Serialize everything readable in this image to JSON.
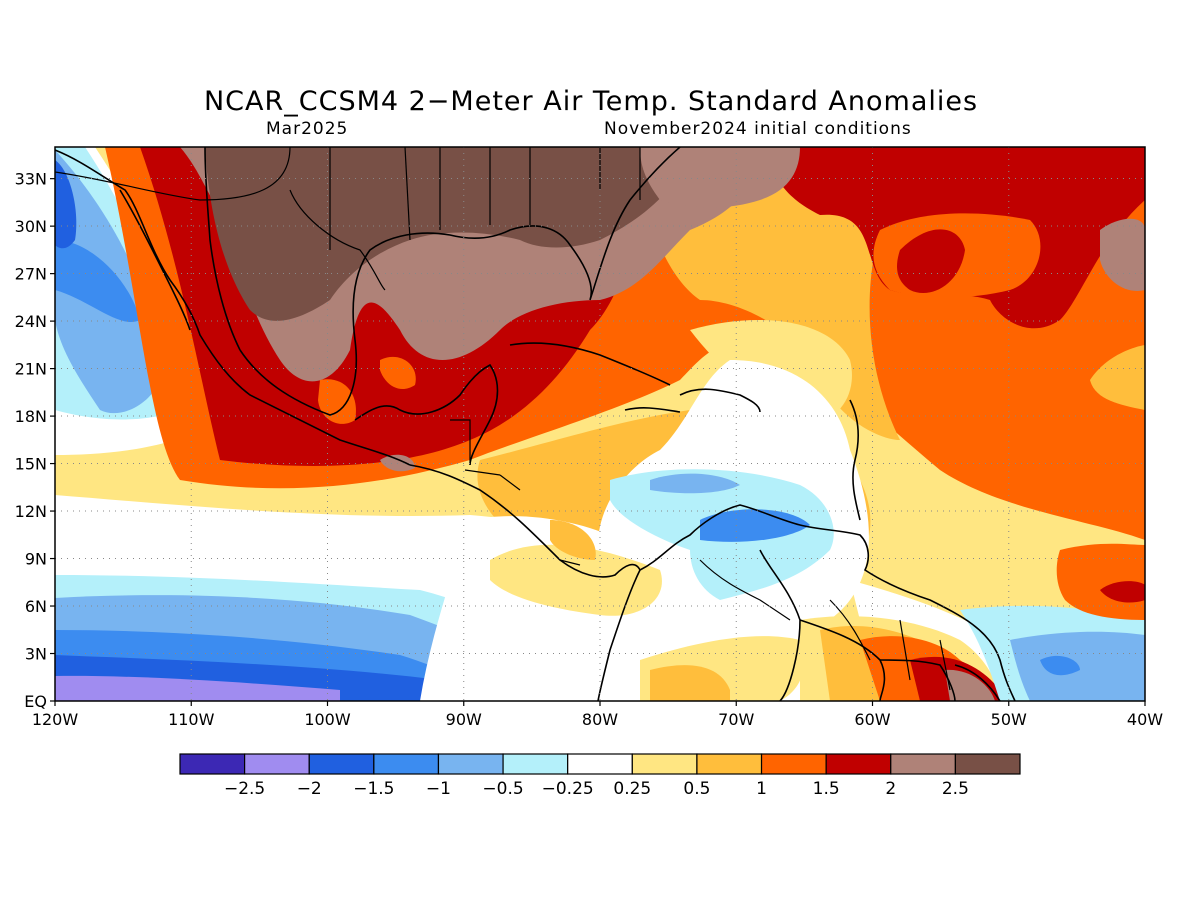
{
  "title": "NCAR_CCSM4 2−Meter Air Temp. Standard Anomalies",
  "subtitle_left": "Mar2025",
  "subtitle_right": "November2024 initial conditions",
  "map": {
    "lat_labels": [
      "EQ",
      "3N",
      "6N",
      "9N",
      "12N",
      "15N",
      "18N",
      "21N",
      "24N",
      "27N",
      "30N",
      "33N"
    ],
    "lon_labels": [
      "120W",
      "110W",
      "100W",
      "90W",
      "80W",
      "70W",
      "60W",
      "50W",
      "40W"
    ],
    "lon_range": [
      -120,
      -40
    ],
    "lat_range": [
      0,
      35
    ],
    "grid": "dotted"
  },
  "colorbar": {
    "colors": [
      "#3c28b4",
      "#a08cf0",
      "#2060e0",
      "#3c8cf0",
      "#78b4f0",
      "#b4f0fa",
      "#ffffff",
      "#ffe682",
      "#ffbe3c",
      "#ff6400",
      "#c00000",
      "#af8278",
      "#785046"
    ],
    "labels": [
      "−2.5",
      "−2",
      "−1.5",
      "−1",
      "−0.5",
      "−0.25",
      "0.25",
      "0.5",
      "1",
      "1.5",
      "2",
      "2.5"
    ]
  }
}
